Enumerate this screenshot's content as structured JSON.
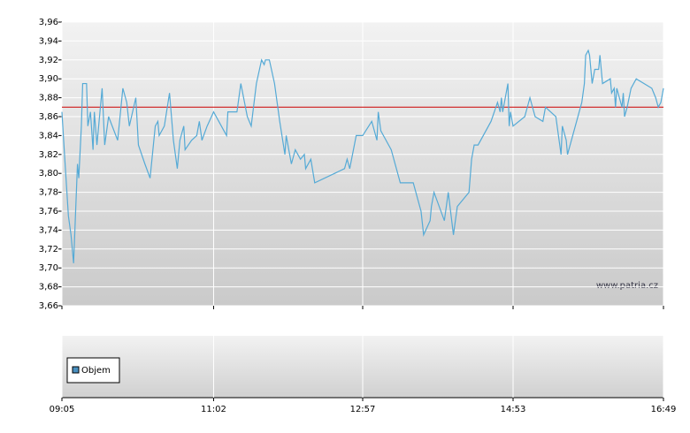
{
  "chart_data": {
    "type": "line",
    "x": [
      "09:05",
      "09:07",
      "09:10",
      "09:12",
      "09:14",
      "09:17",
      "09:18",
      "09:20",
      "09:21",
      "09:24",
      "09:25",
      "09:27",
      "09:29",
      "09:30",
      "09:32",
      "09:36",
      "09:38",
      "09:41",
      "09:48",
      "09:52",
      "09:55",
      "09:57",
      "10:02",
      "10:04",
      "10:09",
      "10:13",
      "10:17",
      "10:19",
      "10:20",
      "10:24",
      "10:28",
      "10:31",
      "10:34",
      "10:36",
      "10:39",
      "10:40",
      "10:45",
      "10:49",
      "10:51",
      "10:53",
      "10:57",
      "11:02",
      "11:08",
      "11:12",
      "11:13",
      "11:20",
      "11:23",
      "11:28",
      "11:31",
      "11:35",
      "11:39",
      "11:41",
      "11:42",
      "11:45",
      "11:49",
      "11:53",
      "11:57",
      "11:58",
      "12:02",
      "12:05",
      "12:09",
      "12:12",
      "12:13",
      "12:17",
      "12:20",
      "12:43",
      "12:45",
      "12:47",
      "12:52",
      "12:57",
      "13:04",
      "13:08",
      "13:09",
      "13:11",
      "13:15",
      "13:19",
      "13:26",
      "13:36",
      "13:42",
      "13:44",
      "13:49",
      "13:50",
      "13:52",
      "14:00",
      "14:03",
      "14:07",
      "14:10",
      "14:19",
      "14:21",
      "14:23",
      "14:26",
      "14:30",
      "14:36",
      "14:41",
      "14:43",
      "14:44",
      "14:45",
      "14:49",
      "14:50",
      "14:51",
      "14:53",
      "15:02",
      "15:06",
      "15:10",
      "15:16",
      "15:18",
      "15:26",
      "15:28",
      "15:30",
      "15:31",
      "15:34",
      "15:35",
      "15:41",
      "15:46",
      "15:48",
      "15:49",
      "15:51",
      "15:52",
      "15:54",
      "15:56",
      "15:59",
      "16:00",
      "16:02",
      "16:08",
      "16:09",
      "16:11",
      "16:12",
      "16:13",
      "16:17",
      "16:18",
      "16:19",
      "16:21",
      "16:24",
      "16:28",
      "16:40",
      "16:43",
      "16:45",
      "16:47",
      "16:49"
    ],
    "series": [
      {
        "color": "#55aad6",
        "values": [
          3.865,
          3.82,
          3.755,
          3.735,
          3.705,
          3.81,
          3.795,
          3.85,
          3.895,
          3.895,
          3.85,
          3.865,
          3.825,
          3.865,
          3.83,
          3.89,
          3.83,
          3.86,
          3.835,
          3.89,
          3.875,
          3.85,
          3.88,
          3.83,
          3.81,
          3.795,
          3.85,
          3.855,
          3.84,
          3.85,
          3.885,
          3.835,
          3.805,
          3.835,
          3.85,
          3.825,
          3.835,
          3.84,
          3.855,
          3.835,
          3.85,
          3.865,
          3.85,
          3.84,
          3.865,
          3.865,
          3.895,
          3.86,
          3.85,
          3.895,
          3.92,
          3.915,
          3.92,
          3.92,
          3.895,
          3.855,
          3.82,
          3.84,
          3.81,
          3.825,
          3.815,
          3.82,
          3.805,
          3.815,
          3.79,
          3.805,
          3.815,
          3.805,
          3.84,
          3.84,
          3.855,
          3.835,
          3.865,
          3.845,
          3.835,
          3.825,
          3.79,
          3.79,
          3.76,
          3.735,
          3.75,
          3.765,
          3.78,
          3.75,
          3.78,
          3.735,
          3.765,
          3.78,
          3.815,
          3.83,
          3.83,
          3.84,
          3.855,
          3.875,
          3.865,
          3.88,
          3.865,
          3.895,
          3.85,
          3.865,
          3.85,
          3.86,
          3.88,
          3.86,
          3.855,
          3.87,
          3.86,
          3.84,
          3.82,
          3.85,
          3.835,
          3.82,
          3.85,
          3.875,
          3.895,
          3.925,
          3.93,
          3.925,
          3.895,
          3.91,
          3.91,
          3.925,
          3.895,
          3.9,
          3.885,
          3.89,
          3.87,
          3.89,
          3.87,
          3.885,
          3.86,
          3.87,
          3.89,
          3.9,
          3.89,
          3.88,
          3.87,
          3.875,
          3.89
        ]
      }
    ],
    "reference_line": {
      "value": 3.87,
      "color": "#cc0000"
    },
    "xlim": [
      "09:05",
      "16:49"
    ],
    "xticks": [
      "09:05",
      "11:02",
      "12:57",
      "14:53",
      "16:49"
    ],
    "ylim": [
      3.66,
      3.96
    ],
    "yticks": [
      {
        "value": 3.66,
        "label": "3,66"
      },
      {
        "value": 3.68,
        "label": "3,68"
      },
      {
        "value": 3.7,
        "label": "3,70"
      },
      {
        "value": 3.72,
        "label": "3,72"
      },
      {
        "value": 3.74,
        "label": "3,74"
      },
      {
        "value": 3.76,
        "label": "3,76"
      },
      {
        "value": 3.78,
        "label": "3,78"
      },
      {
        "value": 3.8,
        "label": "3,80"
      },
      {
        "value": 3.82,
        "label": "3,82"
      },
      {
        "value": 3.84,
        "label": "3,84"
      },
      {
        "value": 3.86,
        "label": "3,86"
      },
      {
        "value": 3.88,
        "label": "3,88"
      },
      {
        "value": 3.9,
        "label": "3,90"
      },
      {
        "value": 3.92,
        "label": "3,92"
      },
      {
        "value": 3.94,
        "label": "3,94"
      },
      {
        "value": 3.96,
        "label": "3,96"
      }
    ],
    "grid": true,
    "watermark": "www.patria.cz",
    "volume_legend": {
      "name": "Objem",
      "color": "#4a90c0"
    }
  }
}
